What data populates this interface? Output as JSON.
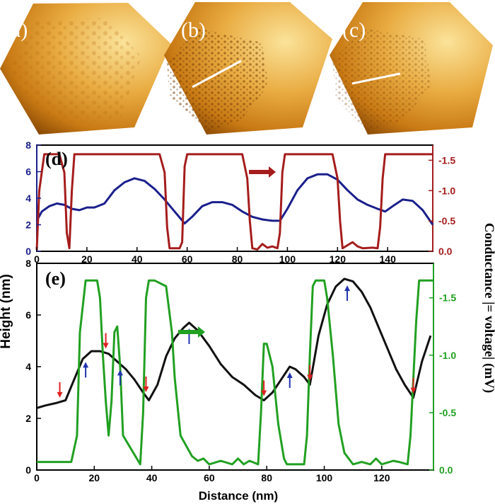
{
  "colors": {
    "height_d": "#1a1f8c",
    "conductance_d": "#a51c1c",
    "height_e": "#111111",
    "conductance_e": "#21a021",
    "red_marker": "#e02020",
    "blue_marker": "#2033b0",
    "image_dark": "#8a4a05",
    "image_mid": "#d58a1c",
    "image_light": "#fbe39a"
  },
  "images": [
    {
      "label": "(a)",
      "icon": "afm-topography-image",
      "has_line": false
    },
    {
      "label": "(b)",
      "icon": "afm-topography-image",
      "has_line": true
    },
    {
      "label": "(c)",
      "icon": "afm-topography-image",
      "has_line": true
    }
  ],
  "chart_data": [
    {
      "type": "line",
      "panel": "(d)",
      "xlim": [
        0,
        158
      ],
      "ylim_left": [
        0,
        8
      ],
      "ylim_right": [
        0,
        1.75
      ],
      "x_ticks": [
        "0",
        "20",
        "40",
        "60",
        "80",
        "100",
        "120",
        "140"
      ],
      "x_tick_values": [
        0,
        20,
        40,
        60,
        80,
        100,
        120,
        140
      ],
      "y_left_ticks": [
        "0",
        "2",
        "4",
        "6",
        "8"
      ],
      "y_left_tick_values": [
        0,
        2,
        4,
        6,
        8
      ],
      "y_right_ticks": [
        "0.0",
        "-0.5",
        "-1.0",
        "-1.5"
      ],
      "y_right_tick_values": [
        0,
        0.5,
        1.0,
        1.5
      ],
      "series": [
        {
          "name": "Height",
          "axis": "left",
          "x": [
            0,
            2,
            5,
            8,
            11,
            14,
            17,
            20,
            23,
            27,
            31,
            35,
            39,
            43,
            47,
            51,
            55,
            59,
            62,
            66,
            70,
            74,
            78,
            82,
            86,
            90,
            94,
            97,
            100,
            104,
            108,
            112,
            116,
            120,
            124,
            128,
            132,
            136,
            139,
            142,
            146,
            150,
            154,
            158
          ],
          "values": [
            2.3,
            3.0,
            3.4,
            3.6,
            3.5,
            3.2,
            3.1,
            3.3,
            3.3,
            3.6,
            4.6,
            5.2,
            5.5,
            5.3,
            4.7,
            3.9,
            3.0,
            2.1,
            2.6,
            3.4,
            3.7,
            3.7,
            3.5,
            3.0,
            2.6,
            2.4,
            2.3,
            2.3,
            3.2,
            4.6,
            5.5,
            5.8,
            5.8,
            5.4,
            4.6,
            3.9,
            3.5,
            3.2,
            3.0,
            3.4,
            3.9,
            3.8,
            3.1,
            2.0
          ]
        },
        {
          "name": "Conductance |= voltage| (mV)",
          "axis": "right",
          "x": [
            0,
            1,
            3,
            9,
            11,
            12,
            13,
            14,
            15,
            49,
            51,
            52,
            53,
            57,
            58,
            59,
            60,
            82,
            84,
            85,
            86,
            88,
            90,
            92,
            94,
            96,
            97,
            98,
            99,
            118,
            120,
            121,
            122,
            124,
            126,
            128,
            130,
            134,
            136,
            137,
            138,
            139,
            158
          ],
          "values": [
            0.02,
            1.0,
            1.6,
            1.6,
            1.3,
            0.3,
            0.05,
            1.0,
            1.6,
            1.6,
            1.3,
            0.4,
            0.05,
            0.05,
            0.15,
            1.4,
            1.6,
            1.6,
            1.2,
            0.5,
            0.05,
            0.03,
            0.12,
            0.06,
            0.08,
            0.05,
            0.3,
            1.3,
            1.6,
            1.6,
            1.2,
            0.5,
            0.05,
            0.1,
            0.15,
            0.08,
            0.05,
            0.06,
            0.05,
            0.4,
            1.2,
            1.6,
            1.6
          ]
        }
      ]
    },
    {
      "type": "line",
      "panel": "(e)",
      "xlim": [
        0,
        138
      ],
      "ylim_left": [
        0,
        8
      ],
      "ylim_right": [
        0,
        1.8
      ],
      "xlabel": "Distance (nm)",
      "ylabel_left": "Height (nm)",
      "ylabel_right": "Conductance |= voltage| (mV)",
      "x_ticks": [
        "0",
        "20",
        "40",
        "60",
        "80",
        "100",
        "120"
      ],
      "x_tick_values": [
        0,
        20,
        40,
        60,
        80,
        100,
        120
      ],
      "y_left_ticks": [
        "0",
        "2",
        "4",
        "6",
        "8"
      ],
      "y_left_tick_values": [
        0,
        2,
        4,
        6,
        8
      ],
      "y_right_ticks": [
        "0.0",
        "-0.5",
        "-1.0",
        "-1.5"
      ],
      "y_right_tick_values": [
        0,
        0.5,
        1.0,
        1.5
      ],
      "series": [
        {
          "name": "Height",
          "axis": "left",
          "x": [
            0,
            3,
            7,
            10,
            13,
            16,
            19,
            22,
            25,
            28,
            31,
            34,
            37,
            39,
            42,
            45,
            48,
            51,
            53,
            56,
            60,
            64,
            68,
            72,
            76,
            79,
            82,
            85,
            88,
            90,
            93,
            95,
            98,
            101,
            104,
            107,
            110,
            113,
            116,
            119,
            122,
            125,
            128,
            131,
            134,
            137
          ],
          "values": [
            2.4,
            2.5,
            2.6,
            2.7,
            3.5,
            4.3,
            4.6,
            4.6,
            4.5,
            4.2,
            3.9,
            3.5,
            3.0,
            2.7,
            3.3,
            4.4,
            5.1,
            5.5,
            5.7,
            5.4,
            4.8,
            4.1,
            3.6,
            3.3,
            2.9,
            2.7,
            3.0,
            3.5,
            4.0,
            3.9,
            3.6,
            3.3,
            5.2,
            6.4,
            7.1,
            7.4,
            7.3,
            6.9,
            6.3,
            5.5,
            4.7,
            3.9,
            3.3,
            2.8,
            4.2,
            5.2
          ]
        },
        {
          "name": "Conductance |= voltage| (mV)",
          "axis": "right",
          "x": [
            0,
            12,
            14,
            15,
            17,
            21,
            22,
            23,
            24,
            25,
            26,
            27,
            28,
            29,
            30,
            36,
            37,
            38,
            39,
            41,
            45,
            47,
            48,
            50,
            54,
            56,
            58,
            60,
            64,
            68,
            70,
            72,
            74,
            77,
            78,
            79,
            80,
            82,
            84,
            86,
            87,
            88,
            90,
            93,
            94,
            95,
            96,
            97,
            100,
            101,
            103,
            105,
            107,
            110,
            113,
            116,
            118,
            120,
            124,
            126,
            129,
            130,
            132,
            133,
            134,
            138
          ],
          "values": [
            0.07,
            0.07,
            0.3,
            1.2,
            1.65,
            1.65,
            1.5,
            1.0,
            0.6,
            0.3,
            0.6,
            1.2,
            1.25,
            0.9,
            0.3,
            0.05,
            0.5,
            1.5,
            1.65,
            1.65,
            1.6,
            1.2,
            0.8,
            0.3,
            0.12,
            0.08,
            0.1,
            0.05,
            0.08,
            0.05,
            0.1,
            0.05,
            0.08,
            0.05,
            0.5,
            1.1,
            1.1,
            0.9,
            0.4,
            0.1,
            0.05,
            0.05,
            0.05,
            0.05,
            0.3,
            1.0,
            1.6,
            1.65,
            1.65,
            1.5,
            1.0,
            0.4,
            0.15,
            0.05,
            0.07,
            0.05,
            0.1,
            0.05,
            0.08,
            0.07,
            0.05,
            0.3,
            1.3,
            1.65,
            1.65,
            1.65
          ]
        }
      ],
      "red_arrows_x": [
        8,
        24,
        38,
        79,
        95,
        131
      ],
      "blue_arrows_x": [
        17,
        29,
        53,
        88,
        108
      ]
    }
  ]
}
